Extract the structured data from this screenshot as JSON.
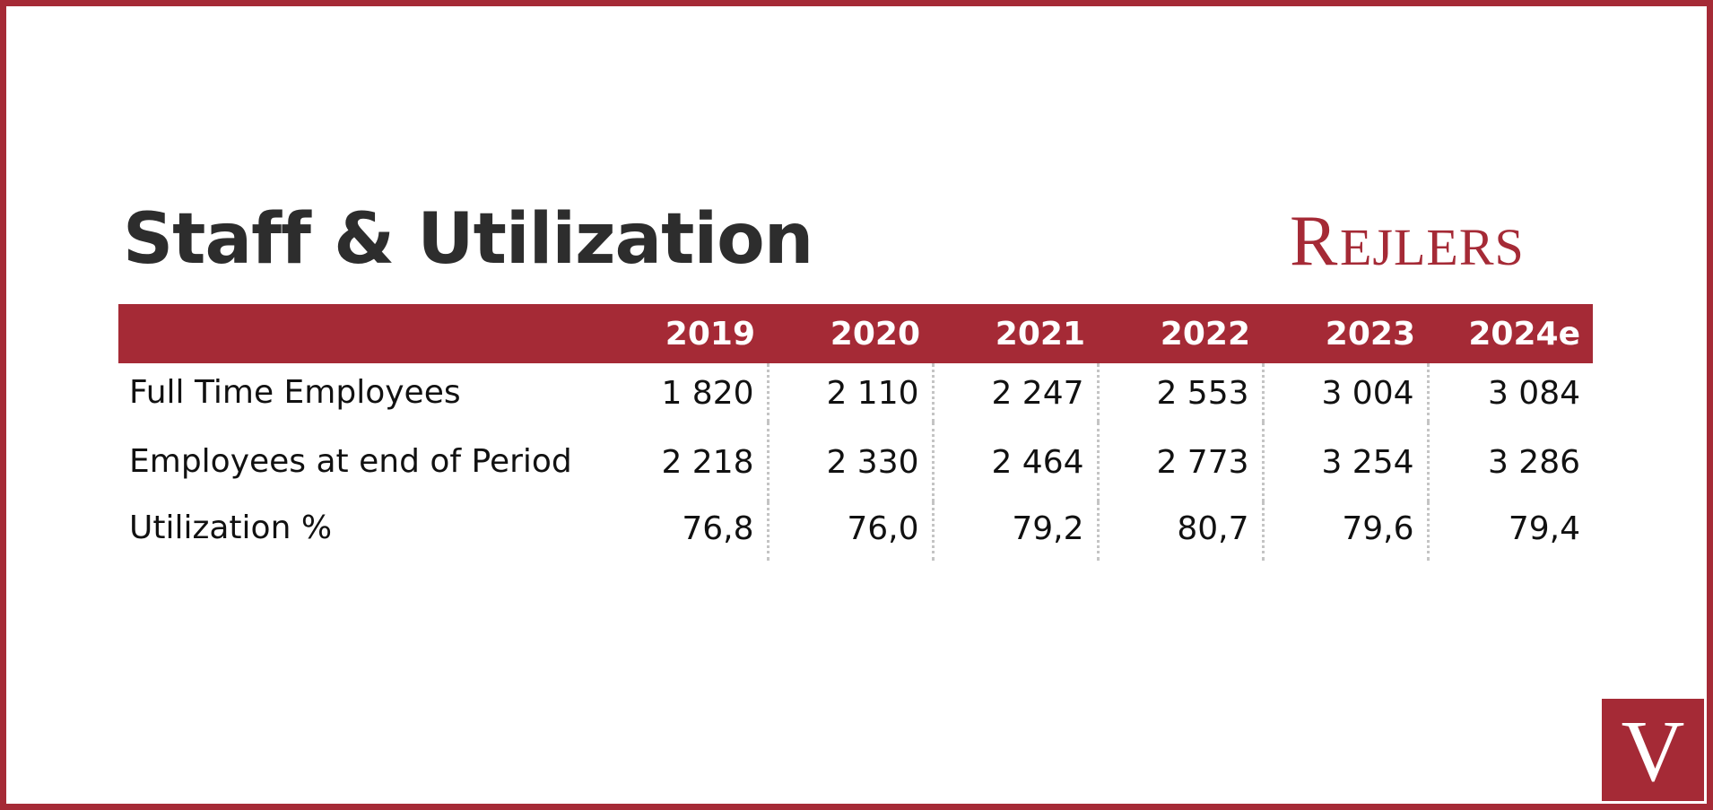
{
  "title": "Staff & Utilization",
  "logo_text": "Rejlers",
  "badge_letter": "V",
  "colors": {
    "accent": "#a52a36",
    "title": "#2d2d2d",
    "text": "#111111",
    "separator": "#c4c4c4"
  },
  "chart_data": {
    "type": "table",
    "title": "Staff & Utilization",
    "columns": [
      "2019",
      "2020",
      "2021",
      "2022",
      "2023",
      "2024e"
    ],
    "rows": [
      {
        "label": "Full Time Employees",
        "values": [
          "1 820",
          "2 110",
          "2 247",
          "2 553",
          "3 004",
          "3 084"
        ]
      },
      {
        "label": "Employees at end of Period",
        "values": [
          "2 218",
          "2 330",
          "2 464",
          "2 773",
          "3 254",
          "3 286"
        ]
      },
      {
        "label": "Utilization %",
        "values": [
          "76,8",
          "76,0",
          "79,2",
          "80,7",
          "79,6",
          "79,4"
        ]
      }
    ]
  }
}
